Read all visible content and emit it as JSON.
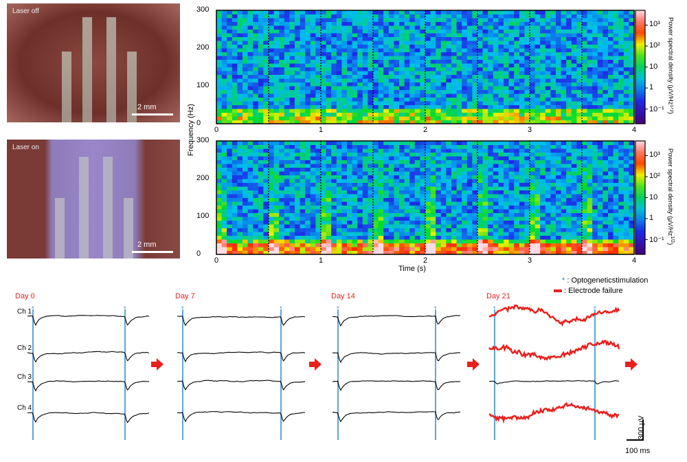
{
  "photos": [
    {
      "label": "Laser off",
      "scale_label": "2 mm"
    },
    {
      "label": "Laser on",
      "scale_label": "2 mm"
    }
  ],
  "chart_data": [
    {
      "type": "heatmap",
      "panel": "laser-off spectrogram",
      "xlabel": "",
      "ylabel": "Frequency (Hz)",
      "xlim": [
        0,
        4
      ],
      "ylim": [
        0,
        300
      ],
      "x_ticks": [
        "0",
        "1",
        "2",
        "3",
        "4"
      ],
      "y_ticks": [
        "0",
        "100",
        "200",
        "300"
      ],
      "stim_markers_s": [
        0.5,
        1,
        1.5,
        2,
        2.5,
        3,
        3.5
      ]
    },
    {
      "type": "heatmap",
      "panel": "laser-on spectrogram",
      "xlabel": "Time (s)",
      "ylabel": "Frequency (Hz)",
      "xlim": [
        0,
        4
      ],
      "ylim": [
        0,
        300
      ],
      "x_ticks": [
        "0",
        "1",
        "2",
        "3",
        "4"
      ],
      "y_ticks": [
        "0",
        "100",
        "200",
        "300"
      ],
      "stim_markers_s": [
        0.5,
        1,
        1.5,
        2,
        2.5,
        3,
        3.5
      ]
    },
    {
      "type": "line",
      "panel": "recordings",
      "days": [
        "Day 0",
        "Day 7",
        "Day 14",
        "Day 21"
      ],
      "channels": [
        "Ch 1",
        "Ch 2",
        "Ch 3",
        "Ch 4"
      ],
      "failed_channels_day21": [
        "Ch 1",
        "Ch 2",
        "Ch 4"
      ]
    }
  ],
  "colorbar": {
    "label": "Power spectral density (μV/Hz¹ᐟ²)",
    "label_text": "Power spectral density (μV/Hz",
    "label_sup": "1/2",
    "label_end": ")",
    "ticks": [
      "10³",
      "10²",
      "10",
      "1",
      "10⁻¹"
    ]
  },
  "axis": {
    "ylabel": "Frequency (Hz)",
    "xlabel": "Time (s)"
  },
  "legend": {
    "stim": ": Optogeneticstimulation",
    "failure": ": Electrode failure",
    "stim_symbol": "*"
  },
  "scalebar": {
    "v": "300 μV",
    "t": "100 ms"
  },
  "colors": {
    "stim": "#5aa6d6",
    "failure": "#e8201c",
    "trace": "#000000"
  }
}
